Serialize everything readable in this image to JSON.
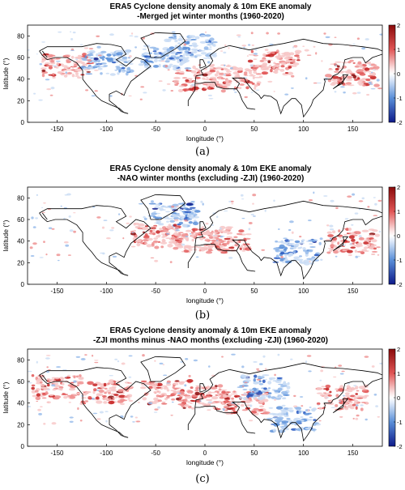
{
  "chart_data": [
    {
      "type": "heatmap",
      "panel": "(a)",
      "title_lines": [
        "ERA5 Cyclone density anomaly & 10m EKE anomaly",
        "-Merged jet winter months (1960-2020)"
      ],
      "xlabel": "longitude (°)",
      "ylabel": "latitude (°)",
      "xlim": [
        -180,
        180
      ],
      "ylim": [
        0,
        90
      ],
      "xticks": [
        -150,
        -100,
        -50,
        0,
        50,
        100,
        150
      ],
      "yticks": [
        0,
        20,
        40,
        60,
        80
      ],
      "colorbar": {
        "ticks": [
          2,
          1,
          0,
          -1,
          -2
        ],
        "range": [
          -2,
          2
        ],
        "colors": {
          "neg": "#0d1a8a",
          "zero": "#ffffff",
          "pos": "#8a0a0a"
        }
      },
      "clusters": [
        {
          "lon": -5,
          "lat": 40,
          "sign": 1
        },
        {
          "lon": 30,
          "lat": 42,
          "sign": 1
        },
        {
          "lon": -40,
          "lat": 60,
          "sign": -1
        },
        {
          "lon": -15,
          "lat": 70,
          "sign": -1
        },
        {
          "lon": -140,
          "lat": 52,
          "sign": 1
        },
        {
          "lon": 150,
          "lat": 45,
          "sign": 1
        },
        {
          "lon": 70,
          "lat": 55,
          "sign": 1
        },
        {
          "lon": -100,
          "lat": 55,
          "sign": -1
        }
      ]
    },
    {
      "type": "heatmap",
      "panel": "(b)",
      "title_lines": [
        "ERA5 Cyclone density anomaly & 10m EKE anomaly",
        "-NAO winter months (excluding -ZJI) (1960-2020)"
      ],
      "xlabel": "longitude (°)",
      "ylabel": "latitude (°)",
      "xlim": [
        -180,
        180
      ],
      "ylim": [
        0,
        90
      ],
      "xticks": [
        -150,
        -100,
        -50,
        0,
        50,
        100,
        150
      ],
      "yticks": [
        0,
        20,
        40,
        60,
        80
      ],
      "colorbar": {
        "ticks": [
          2,
          1,
          0,
          -1,
          -2
        ],
        "range": [
          -2,
          2
        ],
        "colors": {
          "neg": "#0d1a8a",
          "zero": "#ffffff",
          "pos": "#8a0a0a"
        }
      },
      "clusters": [
        {
          "lon": -30,
          "lat": 64,
          "sign": -1
        },
        {
          "lon": -5,
          "lat": 40,
          "sign": 1
        },
        {
          "lon": 20,
          "lat": 42,
          "sign": 1
        },
        {
          "lon": -50,
          "lat": 45,
          "sign": 1
        },
        {
          "lon": 95,
          "lat": 30,
          "sign": -1
        },
        {
          "lon": 150,
          "lat": 40,
          "sign": 1
        }
      ]
    },
    {
      "type": "heatmap",
      "panel": "(c)",
      "title_lines": [
        "ERA5 Cyclone density anomaly & 10m EKE anomaly",
        "-ZJI months minus -NAO months (excluding -ZJI) (1960-2020)"
      ],
      "xlabel": "longitude (°)",
      "ylabel": "latitude (°)",
      "xlim": [
        -180,
        180
      ],
      "ylim": [
        0,
        90
      ],
      "xticks": [
        -150,
        -100,
        -50,
        0,
        50,
        100,
        150
      ],
      "yticks": [
        0,
        20,
        40,
        60,
        80
      ],
      "colorbar": {
        "ticks": [
          2,
          1,
          0,
          -1,
          -2
        ],
        "range": [
          -2,
          2
        ],
        "colors": {
          "neg": "#0d1a8a",
          "zero": "#ffffff",
          "pos": "#8a0a0a"
        }
      },
      "clusters": [
        {
          "lon": -150,
          "lat": 55,
          "sign": 1
        },
        {
          "lon": -100,
          "lat": 50,
          "sign": 1
        },
        {
          "lon": -40,
          "lat": 50,
          "sign": 1
        },
        {
          "lon": 0,
          "lat": 45,
          "sign": 1
        },
        {
          "lon": 40,
          "lat": 40,
          "sign": 1
        },
        {
          "lon": 140,
          "lat": 45,
          "sign": 1
        },
        {
          "lon": 60,
          "lat": 55,
          "sign": -1
        },
        {
          "lon": 90,
          "lat": 25,
          "sign": -1
        }
      ]
    }
  ]
}
